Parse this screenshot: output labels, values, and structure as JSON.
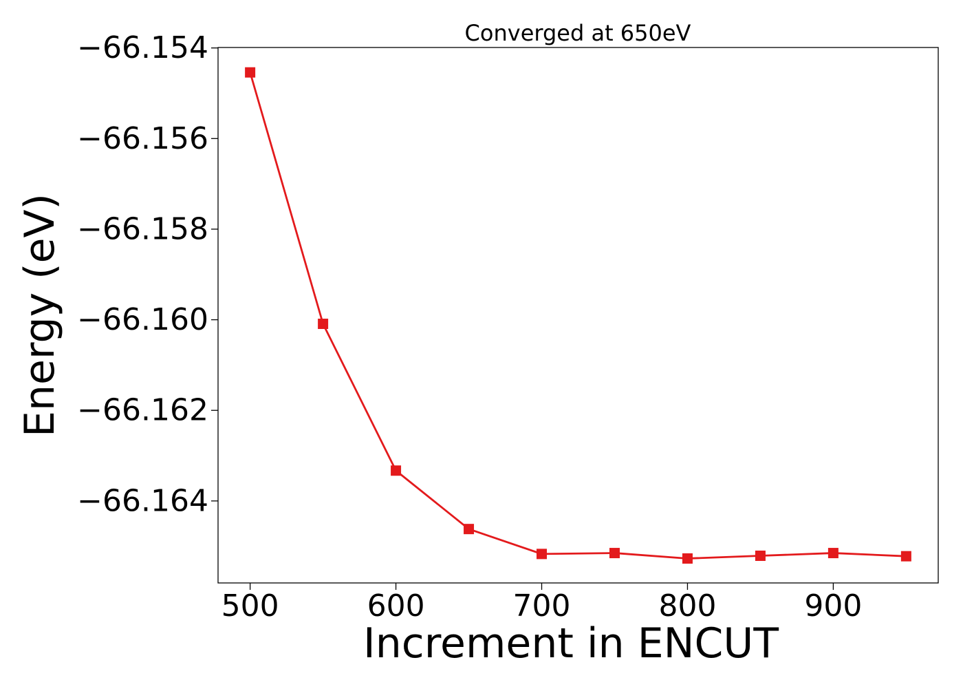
{
  "chart_data": {
    "type": "line",
    "title": "Converged at 650eV",
    "xlabel": "Increment in ENCUT",
    "ylabel": "Energy (eV)",
    "xlim": [
      478,
      972
    ],
    "ylim": [
      -66.16581,
      -66.15399
    ],
    "x_ticks": [
      500,
      600,
      700,
      800,
      900
    ],
    "x_tick_labels": [
      "500",
      "600",
      "700",
      "800",
      "900"
    ],
    "y_ticks": [
      -66.154,
      -66.156,
      -66.158,
      -66.16,
      -66.162,
      -66.164
    ],
    "y_tick_labels": [
      "−66.154",
      "−66.156",
      "−66.158",
      "−66.160",
      "−66.162",
      "−66.164"
    ],
    "grid": false,
    "legend": "none",
    "series": [
      {
        "color": "#e31a1c",
        "marker": "square",
        "x": [
          500,
          550,
          600,
          650,
          700,
          750,
          800,
          850,
          900,
          950
        ],
        "y": [
          -66.15454,
          -66.16009,
          -66.16333,
          -66.16462,
          -66.16517,
          -66.16515,
          -66.16527,
          -66.16521,
          -66.16515,
          -66.16522
        ]
      }
    ]
  }
}
